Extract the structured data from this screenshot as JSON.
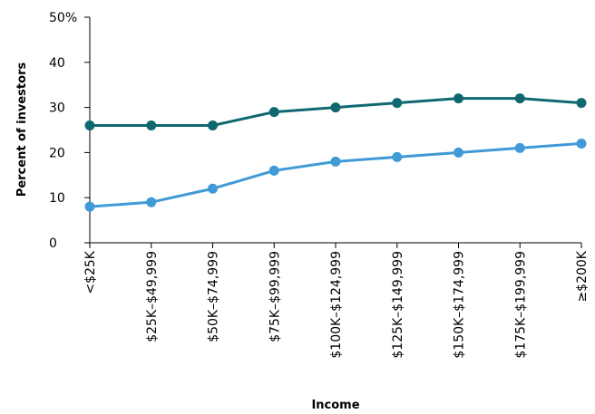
{
  "chart_data": {
    "type": "line",
    "title": "",
    "xlabel": "Income",
    "ylabel": "Percent of investors",
    "categories": [
      "<$25K",
      "$25K–$49,999",
      "$50K–$74,999",
      "$75K–$99,999",
      "$100K–$124,999",
      "$125K–$149,999",
      "$150K–$174,999",
      "$175K–$199,999",
      "≥$200K"
    ],
    "y_ticks": [
      "0",
      "10",
      "20",
      "30",
      "40",
      "50%"
    ],
    "ylim": [
      0,
      50
    ],
    "grid": false,
    "series": [
      {
        "color": "#0f6870",
        "values": [
          26,
          26,
          26,
          29,
          30,
          31,
          32,
          32,
          31
        ]
      },
      {
        "color": "#3f9ad6",
        "values": [
          8,
          9,
          12,
          16,
          18,
          19,
          20,
          21,
          22
        ]
      }
    ]
  }
}
